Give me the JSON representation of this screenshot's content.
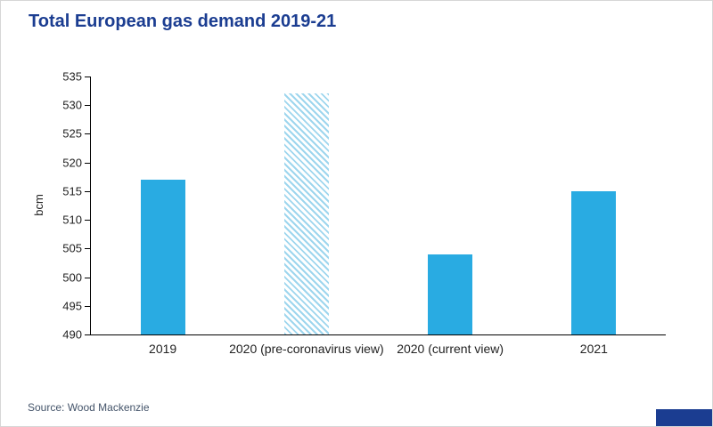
{
  "title": "Total European gas demand 2019-21",
  "source": "Source: Wood Mackenzie",
  "colors": {
    "title_text": "#1b3d91",
    "bar_solid": "#29abe2",
    "bar_hatch_stripe": "#9ed6ee",
    "axis_line": "#000000",
    "source_text": "#44546a",
    "corner_badge": "#1b3d91"
  },
  "chart_data": {
    "type": "bar",
    "categories": [
      "2019",
      "2020 (pre-coronavirus view)",
      "2020 (current view)",
      "2021"
    ],
    "values": [
      517,
      532,
      504,
      515
    ],
    "bar_styles": [
      "solid",
      "hatched",
      "solid",
      "solid"
    ],
    "title": "Total European gas demand 2019-21",
    "xlabel": "",
    "ylabel": "bcm",
    "ylim": [
      490,
      535
    ],
    "ytick_step": 5,
    "grid": false,
    "legend": "none"
  }
}
